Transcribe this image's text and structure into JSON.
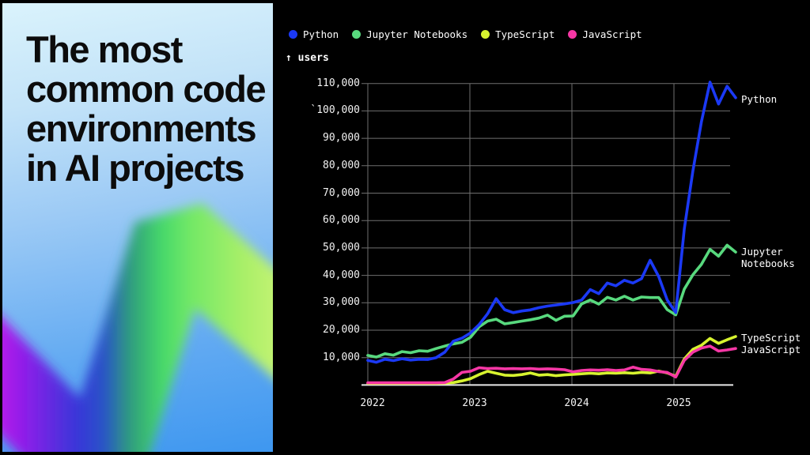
{
  "left_panel": {
    "title_lines": [
      "The most",
      "common code",
      "environments",
      "in AI projects"
    ]
  },
  "chart": {
    "legend": [
      {
        "label": "Python",
        "color": "#1b39f5"
      },
      {
        "label": "Jupyter Notebooks",
        "color": "#58d97e"
      },
      {
        "label": "TypeScript",
        "color": "#d7f32f"
      },
      {
        "label": "JavaScript",
        "color": "#f637a5"
      }
    ],
    "y_axis_title": "↑ users",
    "y_ticks": [
      "110,000",
      "`100,000",
      "90,000",
      "80,000",
      "70,000",
      "60,000",
      "50,000",
      "40,000",
      "30,000",
      "20,000",
      "10,000"
    ],
    "x_ticks": [
      "2022",
      "2023",
      "2024",
      "2025"
    ],
    "series_end_labels": {
      "python": "Python",
      "jupyter_line1": "Jupyter",
      "jupyter_line2": "Notebooks",
      "typescript": "TypeScript",
      "javascript": "JavaScript"
    },
    "colors": {
      "grid": "#6f6f6f",
      "axis": "#e8e8e8",
      "background": "#000000"
    }
  },
  "chart_data": {
    "type": "line",
    "title": "The most common code environments in AI projects",
    "ylabel": "users",
    "ylim": [
      0,
      115000
    ],
    "y_gridlines": [
      10000,
      20000,
      30000,
      40000,
      50000,
      60000,
      70000,
      80000,
      90000,
      100000,
      110000
    ],
    "x": {
      "start": "2022-01",
      "end": "2025-08",
      "interval": "monthly",
      "points": 44
    },
    "x_year_gridlines": [
      "2022",
      "2023",
      "2024",
      "2025"
    ],
    "legend_position": "top",
    "series": [
      {
        "name": "Python",
        "color": "#1b39f5",
        "values": [
          9000,
          8300,
          9400,
          8900,
          9600,
          9100,
          9400,
          9300,
          10000,
          12000,
          16000,
          17100,
          19000,
          22000,
          26000,
          31500,
          27500,
          26400,
          27000,
          27400,
          28200,
          28800,
          29200,
          29600,
          30100,
          31000,
          34800,
          33300,
          37200,
          36200,
          38200,
          37200,
          38800,
          45500,
          39600,
          31000,
          26400,
          57000,
          78000,
          96000,
          110500,
          102500,
          109000,
          104800
        ]
      },
      {
        "name": "Jupyter Notebooks",
        "color": "#58d97e",
        "values": [
          10800,
          10200,
          11400,
          10900,
          12200,
          11800,
          12500,
          12300,
          13300,
          14200,
          15000,
          15600,
          17400,
          21200,
          23300,
          24000,
          22300,
          22800,
          23300,
          23800,
          24400,
          25500,
          23600,
          25100,
          25200,
          29600,
          31000,
          29500,
          32000,
          31000,
          32400,
          31000,
          32100,
          31900,
          31900,
          27500,
          25600,
          35000,
          40200,
          44000,
          49500,
          47000,
          51000,
          48500
        ]
      },
      {
        "name": "TypeScript",
        "color": "#d7f32f",
        "values": [
          600,
          600,
          600,
          600,
          600,
          600,
          600,
          600,
          600,
          700,
          900,
          1500,
          2300,
          3800,
          5000,
          4300,
          3600,
          3500,
          3800,
          4400,
          3600,
          3800,
          3400,
          3700,
          3900,
          4100,
          4300,
          4100,
          4400,
          4300,
          4500,
          4300,
          4600,
          4400,
          5100,
          4400,
          3200,
          9500,
          13000,
          14500,
          17000,
          15200,
          16500,
          17700
        ]
      },
      {
        "name": "JavaScript",
        "color": "#f637a5",
        "values": [
          800,
          800,
          800,
          800,
          800,
          800,
          800,
          800,
          800,
          900,
          2200,
          4600,
          5000,
          6300,
          6000,
          6100,
          5900,
          6000,
          5900,
          6000,
          5800,
          5900,
          5800,
          5600,
          4800,
          5300,
          5500,
          5400,
          5600,
          5300,
          5500,
          6500,
          5700,
          5500,
          4900,
          4600,
          2900,
          9000,
          12000,
          13500,
          14200,
          12400,
          12800,
          13300
        ]
      }
    ]
  }
}
